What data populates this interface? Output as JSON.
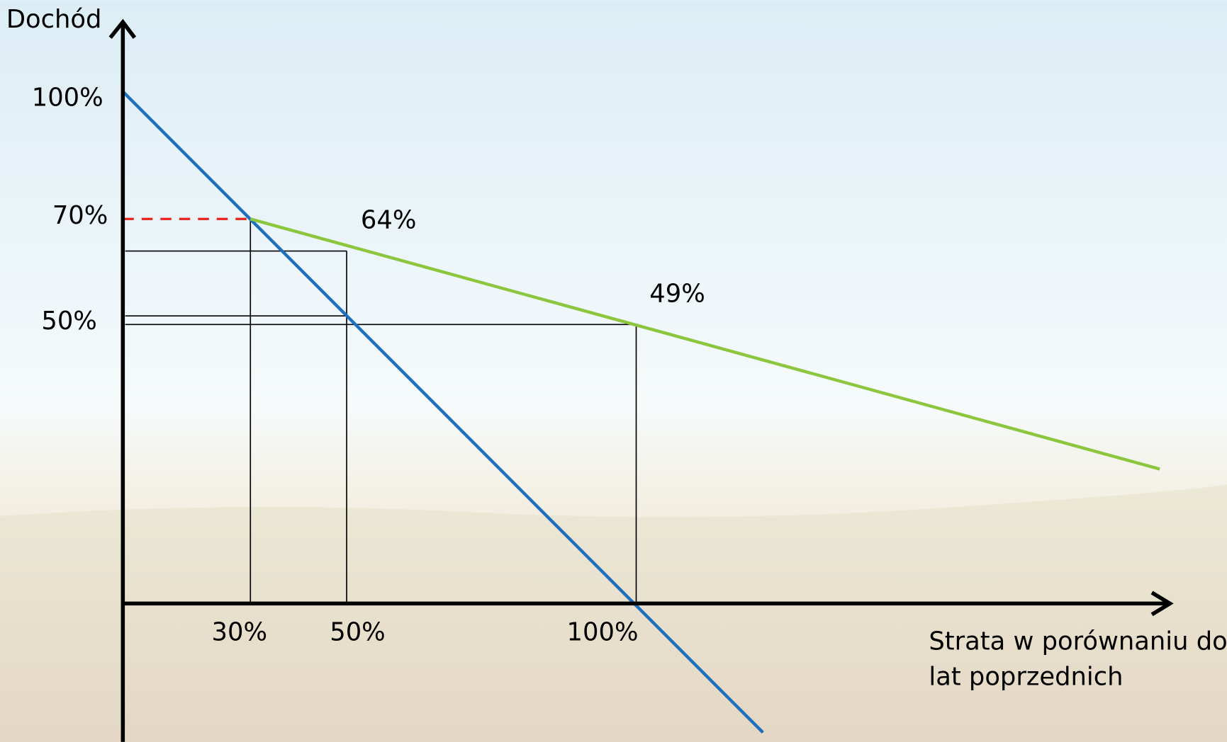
{
  "axes": {
    "y_label": "Dochód",
    "x_label": [
      "Strata w porównaniu do",
      "lat poprzednich"
    ]
  },
  "y_labels": [
    "100%",
    "70%",
    "50%"
  ],
  "x_labels": [
    "30%",
    "50%",
    "100%"
  ],
  "point_labels": [
    "64%",
    "49%"
  ]
}
